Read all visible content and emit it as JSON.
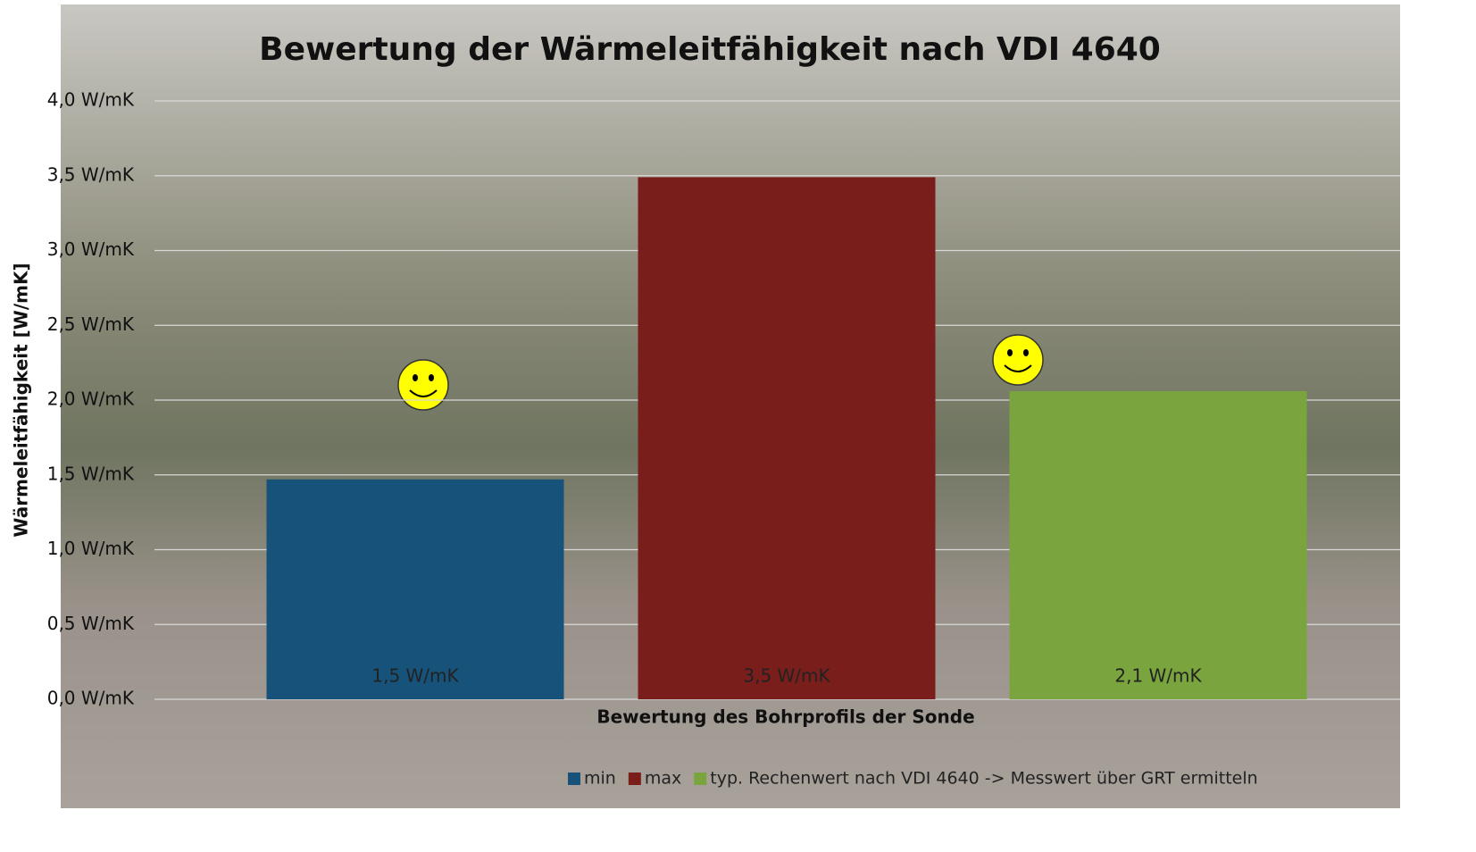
{
  "chart_data": {
    "type": "bar",
    "title": "Bewertung der Wärmeleitfähigkeit nach VDI 4640",
    "x_label": "Bewertung des Bohrprofils der Sonde",
    "y_label": "Wärmeleitfähigkeit [W/mK]",
    "categories": [
      null
    ],
    "series": [
      {
        "name": "min",
        "color": "#16527a",
        "values": [
          1.47
        ],
        "value_labels": [
          "1,5 W/mK"
        ]
      },
      {
        "name": "max",
        "color": "#7a1e1c",
        "values": [
          3.49
        ],
        "value_labels": [
          "3,5 W/mK"
        ]
      },
      {
        "name": "typ. Rechenwert  nach VDI 4640 ->  Messwert über GRT ermitteln",
        "color": "#7aa53e",
        "values": [
          2.06
        ],
        "value_labels": [
          "2,1 W/mK"
        ]
      }
    ],
    "ylim": [
      0,
      4.0
    ],
    "yticks": [
      {
        "value": 0,
        "label": "0,0 W/mK"
      },
      {
        "value": 0.5,
        "label": "0,5 W/mK"
      },
      {
        "value": 1.0,
        "label": "1,0 W/mK"
      },
      {
        "value": 1.5,
        "label": "1,5 W/mK"
      },
      {
        "value": 2.0,
        "label": "2,0 W/mK"
      },
      {
        "value": 2.5,
        "label": "2,5 W/mK"
      },
      {
        "value": 3.0,
        "label": "3,0 W/mK"
      },
      {
        "value": 3.5,
        "label": "3,5 W/mK"
      },
      {
        "value": 4.0,
        "label": "4,0 W/mK"
      }
    ],
    "grid": true,
    "legend": "bottom"
  }
}
